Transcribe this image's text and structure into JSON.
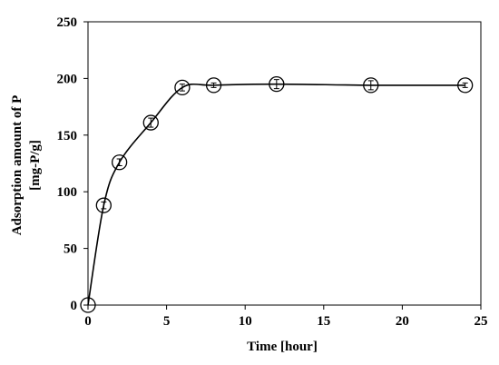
{
  "chart_data": {
    "type": "line",
    "title": "",
    "xlabel": "Time [hour]",
    "ylabel_lines": [
      "Adsorption amount of P",
      "[mg-P/g]"
    ],
    "xlim": [
      0,
      25
    ],
    "ylim": [
      0,
      250
    ],
    "xticks": [
      0,
      5,
      10,
      15,
      20,
      25
    ],
    "yticks": [
      0,
      50,
      100,
      150,
      200,
      250
    ],
    "grid": false,
    "legend": "none",
    "marker": "open-circle",
    "line_color": "#000000",
    "series": [
      {
        "x": [
          0,
          1,
          2,
          4,
          6,
          8,
          12,
          18,
          24
        ],
        "y": [
          0,
          88,
          126,
          161,
          192,
          194,
          195,
          194,
          194
        ],
        "error": [
          0,
          3,
          3,
          4,
          3,
          2,
          4,
          4,
          2
        ]
      }
    ]
  }
}
